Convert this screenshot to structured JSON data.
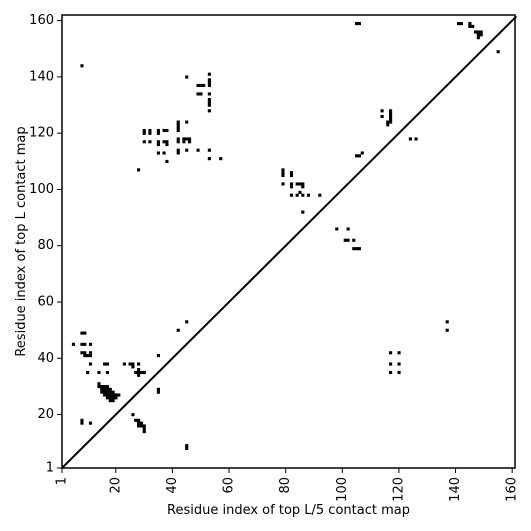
{
  "chart_data": {
    "type": "scatter",
    "title": "",
    "xlabel": "Residue index of top L/5 contact map",
    "ylabel": "Residue index of top L contact map",
    "xlim": [
      1,
      161
    ],
    "ylim": [
      1,
      162
    ],
    "xticks": [
      1,
      20,
      40,
      60,
      80,
      100,
      120,
      140,
      160
    ],
    "yticks": [
      1,
      20,
      40,
      60,
      80,
      100,
      120,
      140,
      160
    ],
    "diagonal_line": true,
    "grid": false,
    "legend": "none",
    "marker_color": "#000000",
    "series": [
      {
        "points": [
          [
            8,
            144
          ],
          [
            45,
            140
          ],
          [
            53,
            141
          ],
          [
            53,
            139
          ],
          [
            53,
            138
          ],
          [
            53,
            137
          ],
          [
            53,
            134
          ],
          [
            53,
            132
          ],
          [
            53,
            131
          ],
          [
            53,
            130
          ],
          [
            53,
            128
          ],
          [
            49,
            137
          ],
          [
            50,
            137
          ],
          [
            51,
            137
          ],
          [
            49,
            134
          ],
          [
            50,
            134
          ],
          [
            42,
            124
          ],
          [
            42,
            123
          ],
          [
            42,
            122
          ],
          [
            42,
            121
          ],
          [
            45,
            124
          ],
          [
            30,
            121
          ],
          [
            30,
            120
          ],
          [
            32,
            121
          ],
          [
            32,
            120
          ],
          [
            35,
            121
          ],
          [
            35,
            120
          ],
          [
            37,
            121
          ],
          [
            38,
            121
          ],
          [
            30,
            117
          ],
          [
            32,
            117
          ],
          [
            35,
            117
          ],
          [
            35,
            116
          ],
          [
            37,
            117
          ],
          [
            38,
            117
          ],
          [
            38,
            116
          ],
          [
            42,
            118
          ],
          [
            42,
            117
          ],
          [
            44,
            118
          ],
          [
            45,
            118
          ],
          [
            46,
            118
          ],
          [
            44,
            117
          ],
          [
            46,
            117
          ],
          [
            35,
            113
          ],
          [
            37,
            113
          ],
          [
            42,
            114
          ],
          [
            42,
            113
          ],
          [
            45,
            114
          ],
          [
            49,
            114
          ],
          [
            53,
            114
          ],
          [
            38,
            110
          ],
          [
            53,
            111
          ],
          [
            57,
            111
          ],
          [
            28,
            107
          ],
          [
            79,
            107
          ],
          [
            79,
            106
          ],
          [
            79,
            105
          ],
          [
            79,
            102
          ],
          [
            82,
            106
          ],
          [
            82,
            105
          ],
          [
            82,
            102
          ],
          [
            82,
            101
          ],
          [
            82,
            98
          ],
          [
            84,
            102
          ],
          [
            85,
            102
          ],
          [
            86,
            102
          ],
          [
            86,
            101
          ],
          [
            85,
            99
          ],
          [
            86,
            98
          ],
          [
            84,
            98
          ],
          [
            88,
            98
          ],
          [
            92,
            98
          ],
          [
            86,
            92
          ],
          [
            98,
            86
          ],
          [
            102,
            86
          ],
          [
            101,
            82
          ],
          [
            102,
            82
          ],
          [
            104,
            82
          ],
          [
            104,
            79
          ],
          [
            105,
            79
          ],
          [
            106,
            79
          ],
          [
            105,
            112
          ],
          [
            106,
            112
          ],
          [
            107,
            113
          ],
          [
            114,
            128
          ],
          [
            114,
            126
          ],
          [
            117,
            128
          ],
          [
            117,
            127
          ],
          [
            117,
            126
          ],
          [
            117,
            125
          ],
          [
            117,
            124
          ],
          [
            116,
            124
          ],
          [
            116,
            123
          ],
          [
            124,
            118
          ],
          [
            126,
            118
          ],
          [
            105,
            159
          ],
          [
            106,
            159
          ],
          [
            141,
            159
          ],
          [
            142,
            159
          ],
          [
            145,
            159
          ],
          [
            145,
            158
          ],
          [
            146,
            158
          ],
          [
            147,
            156
          ],
          [
            148,
            156
          ],
          [
            148,
            155
          ],
          [
            149,
            156
          ],
          [
            149,
            155
          ],
          [
            148,
            154
          ],
          [
            155,
            149
          ],
          [
            137,
            53
          ],
          [
            137,
            50
          ],
          [
            117,
            42
          ],
          [
            120,
            42
          ],
          [
            117,
            38
          ],
          [
            120,
            38
          ],
          [
            117,
            35
          ],
          [
            120,
            35
          ],
          [
            45,
            53
          ],
          [
            42,
            50
          ],
          [
            35,
            41
          ],
          [
            5,
            45
          ],
          [
            8,
            49
          ],
          [
            9,
            49
          ],
          [
            8,
            45
          ],
          [
            9,
            45
          ],
          [
            11,
            45
          ],
          [
            8,
            42
          ],
          [
            9,
            42
          ],
          [
            11,
            42
          ],
          [
            9,
            41
          ],
          [
            10,
            41
          ],
          [
            11,
            41
          ],
          [
            11,
            38
          ],
          [
            10,
            35
          ],
          [
            14,
            35
          ],
          [
            17,
            35
          ],
          [
            16,
            38
          ],
          [
            17,
            38
          ],
          [
            23,
            38
          ],
          [
            25,
            38
          ],
          [
            26,
            38
          ],
          [
            28,
            38
          ],
          [
            26,
            37
          ],
          [
            28,
            36
          ],
          [
            28,
            35
          ],
          [
            29,
            35
          ],
          [
            30,
            35
          ],
          [
            27,
            35
          ],
          [
            28,
            34
          ],
          [
            14,
            31
          ],
          [
            14,
            30
          ],
          [
            15,
            30
          ],
          [
            16,
            30
          ],
          [
            17,
            30
          ],
          [
            15,
            29
          ],
          [
            16,
            29
          ],
          [
            17,
            29
          ],
          [
            18,
            29
          ],
          [
            15,
            28
          ],
          [
            16,
            28
          ],
          [
            17,
            28
          ],
          [
            18,
            28
          ],
          [
            19,
            28
          ],
          [
            16,
            27
          ],
          [
            17,
            27
          ],
          [
            18,
            27
          ],
          [
            19,
            27
          ],
          [
            20,
            27
          ],
          [
            21,
            27
          ],
          [
            17,
            26
          ],
          [
            18,
            26
          ],
          [
            19,
            26
          ],
          [
            20,
            26
          ],
          [
            18,
            25
          ],
          [
            19,
            25
          ],
          [
            35,
            29
          ],
          [
            35,
            28
          ],
          [
            26,
            20
          ],
          [
            8,
            18
          ],
          [
            8,
            17
          ],
          [
            11,
            17
          ],
          [
            27,
            18
          ],
          [
            28,
            18
          ],
          [
            28,
            17
          ],
          [
            29,
            17
          ],
          [
            28,
            16
          ],
          [
            29,
            16
          ],
          [
            30,
            16
          ],
          [
            30,
            15
          ],
          [
            30,
            14
          ],
          [
            45,
            9
          ],
          [
            45,
            8
          ]
        ]
      }
    ]
  }
}
